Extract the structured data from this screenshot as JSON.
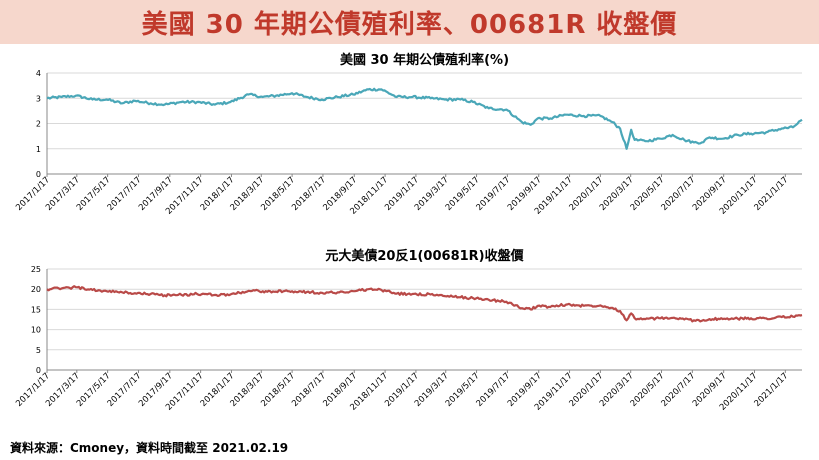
{
  "header": {
    "title": "美國 30 年期公債殖利率、00681R 收盤價"
  },
  "source_note": "資料來源：Cmoney，資料時間截至 2021.02.19",
  "chart_data": [
    {
      "type": "line",
      "title": "美國 30 年期公債殖利率(%)",
      "color": "#4aa7b8",
      "ylim": [
        0,
        4
      ],
      "yticks": [
        0,
        1,
        2,
        3,
        4
      ],
      "grid": true,
      "xlim": [
        "2017-01-17",
        "2021-02-19"
      ],
      "xtick_labels": [
        "2017/1/17",
        "2017/3/17",
        "2017/5/17",
        "2017/7/17",
        "2017/9/17",
        "2017/11/17",
        "2018/1/17",
        "2018/3/17",
        "2018/5/17",
        "2018/7/17",
        "2018/9/17",
        "2018/11/17",
        "2019/1/17",
        "2019/3/17",
        "2019/5/17",
        "2019/7/17",
        "2019/9/17",
        "2019/11/17",
        "2020/1/17",
        "2020/3/17",
        "2020/5/17",
        "2020/7/17",
        "2020/9/17",
        "2020/11/17",
        "2021/1/17"
      ],
      "x": [
        "2017-01-17",
        "2017-02-15",
        "2017-03-15",
        "2017-04-17",
        "2017-05-15",
        "2017-06-15",
        "2017-07-10",
        "2017-08-10",
        "2017-09-07",
        "2017-10-10",
        "2017-11-10",
        "2017-12-15",
        "2018-01-15",
        "2018-02-20",
        "2018-03-20",
        "2018-04-15",
        "2018-05-17",
        "2018-06-15",
        "2018-07-15",
        "2018-08-15",
        "2018-09-15",
        "2018-10-15",
        "2018-11-10",
        "2018-12-10",
        "2019-01-10",
        "2019-02-15",
        "2019-03-15",
        "2019-04-15",
        "2019-05-10",
        "2019-06-10",
        "2019-07-15",
        "2019-08-15",
        "2019-09-01",
        "2019-09-15",
        "2019-10-10",
        "2019-11-10",
        "2019-12-15",
        "2020-01-17",
        "2020-02-10",
        "2020-02-25",
        "2020-03-09",
        "2020-03-18",
        "2020-03-25",
        "2020-04-15",
        "2020-05-15",
        "2020-06-08",
        "2020-07-01",
        "2020-07-20",
        "2020-08-05",
        "2020-08-20",
        "2020-09-15",
        "2020-10-15",
        "2020-11-10",
        "2020-12-10",
        "2021-01-10",
        "2021-02-01",
        "2021-02-19"
      ],
      "values": [
        3.0,
        3.05,
        3.1,
        2.95,
        2.95,
        2.8,
        2.9,
        2.8,
        2.75,
        2.85,
        2.85,
        2.75,
        2.85,
        3.15,
        3.05,
        3.1,
        3.2,
        3.05,
        2.95,
        3.05,
        3.15,
        3.35,
        3.35,
        3.05,
        3.05,
        3.0,
        2.95,
        2.95,
        2.85,
        2.6,
        2.55,
        2.05,
        1.95,
        2.2,
        2.2,
        2.35,
        2.3,
        2.3,
        2.05,
        1.8,
        1.0,
        1.75,
        1.35,
        1.3,
        1.4,
        1.55,
        1.35,
        1.25,
        1.25,
        1.45,
        1.4,
        1.55,
        1.6,
        1.65,
        1.8,
        1.85,
        2.15
      ]
    },
    {
      "type": "line",
      "title": "元大美債20反1(00681R)收盤價",
      "color": "#b94a48",
      "ylim": [
        0,
        25
      ],
      "yticks": [
        0,
        5,
        10,
        15,
        20,
        25
      ],
      "grid": true,
      "xlim": [
        "2017-01-17",
        "2021-02-19"
      ],
      "xtick_labels": [
        "2017/1/17",
        "2017/3/17",
        "2017/5/17",
        "2017/7/17",
        "2017/9/17",
        "2017/11/17",
        "2018/1/17",
        "2018/3/17",
        "2018/5/17",
        "2018/7/17",
        "2018/9/17",
        "2018/11/17",
        "2019/1/17",
        "2019/3/17",
        "2019/5/17",
        "2019/7/17",
        "2019/9/17",
        "2019/11/17",
        "2020/1/17",
        "2020/3/17",
        "2020/5/17",
        "2020/7/17",
        "2020/9/17",
        "2020/11/17",
        "2021/1/17"
      ],
      "x": [
        "2017-01-17",
        "2017-02-15",
        "2017-03-15",
        "2017-04-17",
        "2017-05-15",
        "2017-06-15",
        "2017-07-10",
        "2017-08-10",
        "2017-09-07",
        "2017-10-10",
        "2017-11-10",
        "2017-12-15",
        "2018-01-15",
        "2018-02-20",
        "2018-03-20",
        "2018-04-15",
        "2018-05-17",
        "2018-06-15",
        "2018-07-15",
        "2018-08-15",
        "2018-09-15",
        "2018-10-15",
        "2018-11-10",
        "2018-12-10",
        "2019-01-10",
        "2019-02-15",
        "2019-03-15",
        "2019-04-15",
        "2019-05-10",
        "2019-06-10",
        "2019-07-15",
        "2019-08-15",
        "2019-09-01",
        "2019-09-15",
        "2019-10-10",
        "2019-11-10",
        "2019-12-15",
        "2020-01-17",
        "2020-02-10",
        "2020-02-25",
        "2020-03-09",
        "2020-03-18",
        "2020-03-25",
        "2020-04-15",
        "2020-05-15",
        "2020-06-08",
        "2020-07-01",
        "2020-07-20",
        "2020-08-05",
        "2020-08-20",
        "2020-09-15",
        "2020-10-15",
        "2020-11-10",
        "2020-12-10",
        "2021-01-10",
        "2021-02-01",
        "2021-02-19"
      ],
      "values": [
        20.0,
        20.2,
        20.5,
        19.8,
        19.5,
        19.2,
        19.0,
        18.8,
        18.5,
        18.6,
        18.8,
        18.6,
        18.7,
        19.6,
        19.5,
        19.4,
        19.5,
        19.3,
        19.1,
        19.2,
        19.5,
        20.0,
        19.8,
        18.9,
        18.8,
        18.7,
        18.3,
        18.0,
        17.8,
        17.4,
        16.9,
        15.3,
        15.0,
        15.9,
        15.6,
        16.2,
        15.9,
        16.0,
        15.4,
        14.6,
        12.3,
        14.0,
        12.8,
        12.6,
        12.8,
        12.9,
        12.5,
        12.3,
        12.2,
        12.6,
        12.6,
        12.7,
        12.8,
        12.8,
        13.1,
        13.2,
        13.6
      ]
    }
  ]
}
